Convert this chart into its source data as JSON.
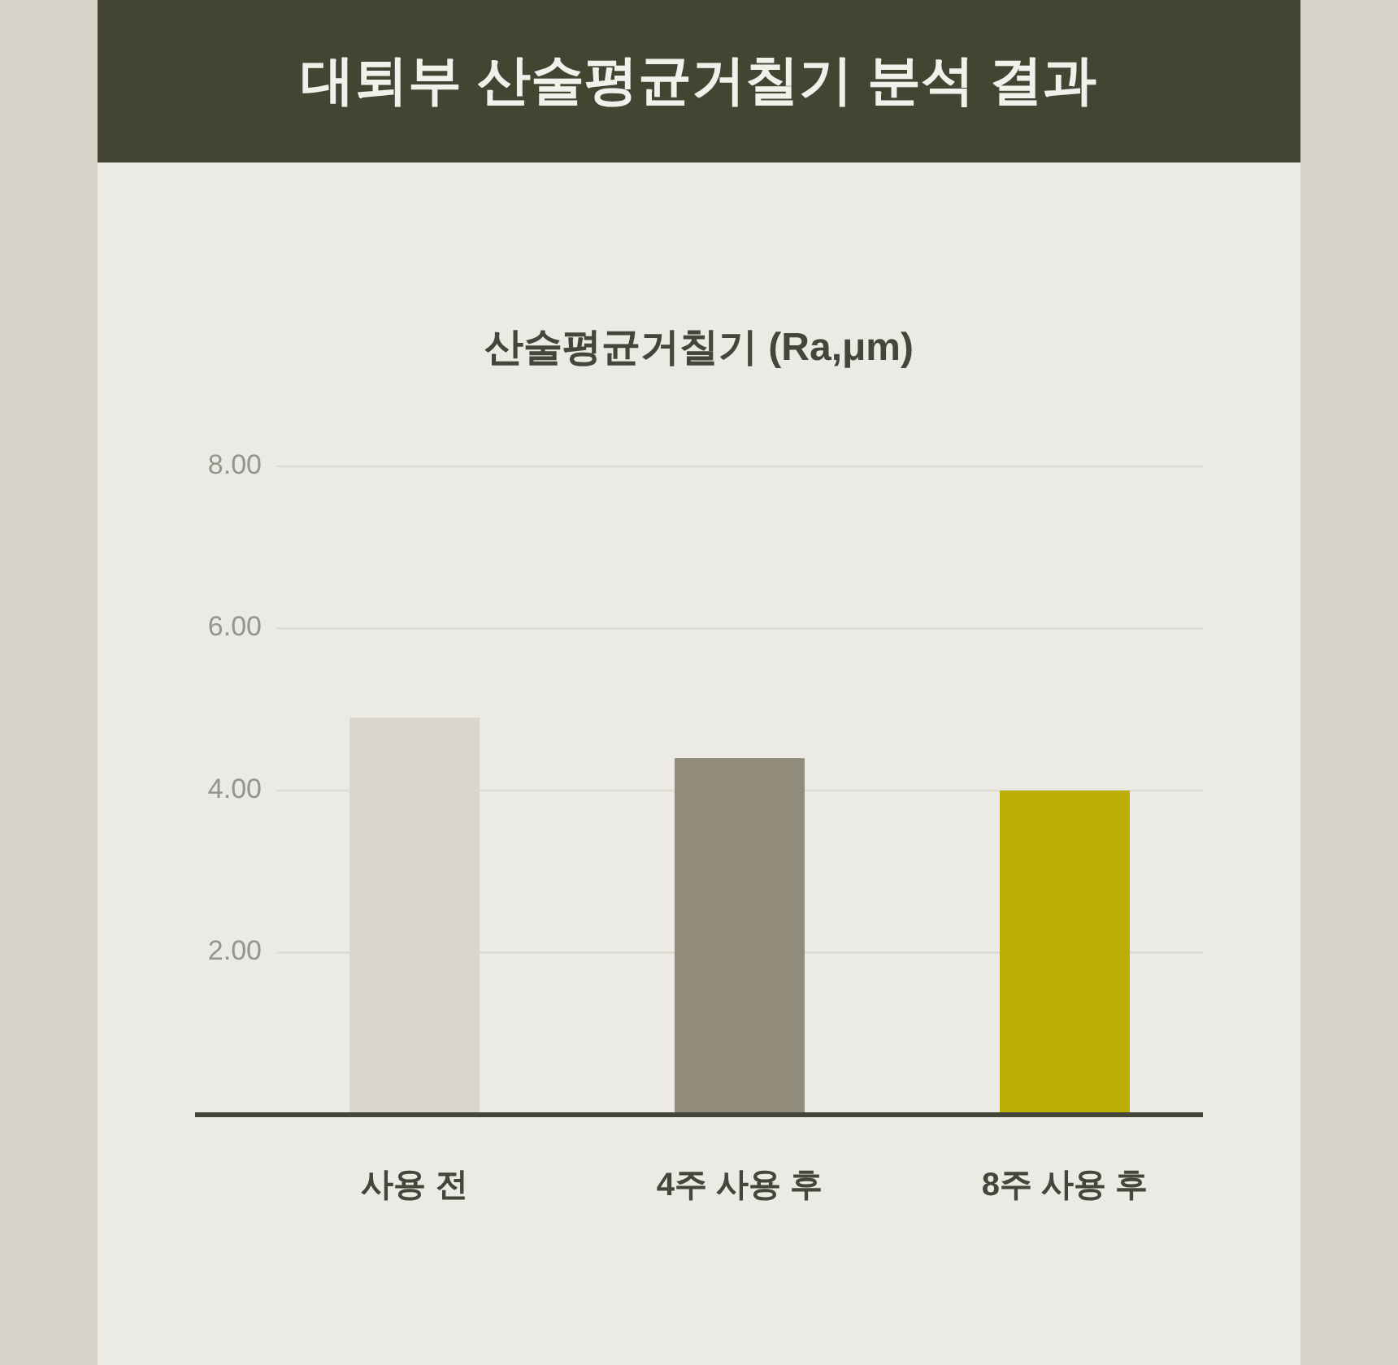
{
  "chart_data": {
    "type": "bar",
    "title": "대퇴부 산술평균거칠기 분석 결과",
    "subtitle": "산술평균거칠기 (Ra,μm)",
    "categories": [
      "사용 전",
      "4주 사용 후",
      "8주 사용 후"
    ],
    "values": [
      4.9,
      4.4,
      4.0
    ],
    "colors": [
      "#d9d7cb",
      "#928c7b",
      "#bdae05"
    ],
    "ylim": [
      0,
      8
    ],
    "yticks": [
      {
        "value": 2,
        "label": "2.00"
      },
      {
        "value": 4,
        "label": "4.00"
      },
      {
        "value": 6,
        "label": "6.00"
      },
      {
        "value": 8,
        "label": "8.00"
      }
    ],
    "grid": "y"
  }
}
